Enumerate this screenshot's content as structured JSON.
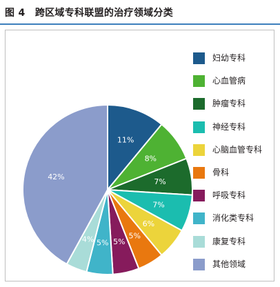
{
  "figure": {
    "title": "图 4　跨区域专科联盟的治疗领域分类"
  },
  "chart_data": {
    "type": "pie",
    "title": "",
    "start": "top-center, clockwise",
    "slices": [
      {
        "label": "妇幼专科",
        "value": 11,
        "value_label": "11%",
        "color": "#1d5a8c"
      },
      {
        "label": "心血管病",
        "value": 8,
        "value_label": "8%",
        "color": "#4eb233"
      },
      {
        "label": "肿瘤专科",
        "value": 7,
        "value_label": "7%",
        "color": "#1c6b2c"
      },
      {
        "label": "神经专科",
        "value": 7,
        "value_label": "7%",
        "color": "#1bbdaf"
      },
      {
        "label": "心脑血管专科",
        "value": 6,
        "value_label": "6%",
        "color": "#ecd43b"
      },
      {
        "label": "骨科",
        "value": 5,
        "value_label": "5%",
        "color": "#e9780f"
      },
      {
        "label": "呼吸专科",
        "value": 5,
        "value_label": "5%",
        "color": "#861b5c"
      },
      {
        "label": "消化类专科",
        "value": 5,
        "value_label": "5%",
        "color": "#40b4c9"
      },
      {
        "label": "康复专科",
        "value": 4,
        "value_label": "4%",
        "color": "#a9dcd8"
      },
      {
        "label": "其他领域",
        "value": 42,
        "value_label": "42%",
        "color": "#8b9ccb"
      }
    ]
  }
}
